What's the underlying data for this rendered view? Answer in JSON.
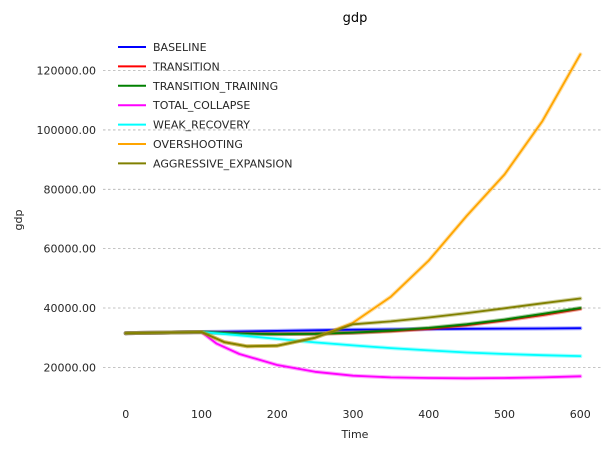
{
  "chart_data": {
    "type": "line",
    "title": "gdp",
    "xlabel": "Time",
    "ylabel": "gdp",
    "xlim": [
      -30,
      630
    ],
    "ylim": [
      9000,
      132000
    ],
    "xticks": [
      0,
      100,
      200,
      300,
      400,
      500,
      600
    ],
    "xtick_labels": [
      "0",
      "100",
      "200",
      "300",
      "400",
      "500",
      "600"
    ],
    "yticks": [
      20000,
      40000,
      60000,
      80000,
      100000,
      120000
    ],
    "ytick_labels": [
      "20000.00",
      "40000.00",
      "60000.00",
      "80000.00",
      "100000.00",
      "120000.00"
    ],
    "grid": "y-dashed",
    "legend": "top-left",
    "series": [
      {
        "name": "BASELINE",
        "color": "#0000ff",
        "x": [
          0,
          50,
          100,
          150,
          200,
          250,
          300,
          350,
          400,
          450,
          500,
          550,
          600
        ],
        "y": [
          31500,
          31700,
          31900,
          32100,
          32300,
          32500,
          32700,
          32800,
          32900,
          33000,
          33050,
          33100,
          33200
        ]
      },
      {
        "name": "TRANSITION",
        "color": "#ff0000",
        "x": [
          0,
          50,
          100,
          150,
          200,
          250,
          300,
          350,
          400,
          450,
          500,
          550,
          600
        ],
        "y": [
          31500,
          31700,
          31900,
          31400,
          31200,
          31300,
          31600,
          32200,
          33000,
          34200,
          35800,
          37600,
          39700
        ]
      },
      {
        "name": "TRANSITION_TRAINING",
        "color": "#008000",
        "x": [
          0,
          50,
          100,
          150,
          200,
          250,
          300,
          350,
          400,
          450,
          500,
          550,
          600
        ],
        "y": [
          31500,
          31700,
          31900,
          31400,
          31200,
          31300,
          31700,
          32400,
          33300,
          34500,
          36100,
          38000,
          40000
        ]
      },
      {
        "name": "TOTAL_COLLAPSE",
        "color": "#ff00ff",
        "x": [
          0,
          50,
          100,
          120,
          150,
          200,
          250,
          300,
          350,
          400,
          450,
          500,
          550,
          600
        ],
        "y": [
          31500,
          31700,
          31900,
          28000,
          24500,
          20800,
          18500,
          17200,
          16600,
          16400,
          16300,
          16400,
          16600,
          17000
        ]
      },
      {
        "name": "WEAK_RECOVERY",
        "color": "#00ffff",
        "x": [
          0,
          50,
          100,
          150,
          200,
          250,
          300,
          350,
          400,
          450,
          500,
          550,
          600
        ],
        "y": [
          31500,
          31700,
          31900,
          30800,
          29600,
          28400,
          27400,
          26500,
          25700,
          25000,
          24500,
          24100,
          23800
        ]
      },
      {
        "name": "OVERSHOOTING",
        "color": "#ffa500",
        "x": [
          0,
          50,
          100,
          130,
          160,
          200,
          250,
          300,
          350,
          400,
          450,
          500,
          550,
          600
        ],
        "y": [
          31500,
          31700,
          31900,
          28500,
          27100,
          27300,
          30000,
          35000,
          43800,
          56000,
          71000,
          85000,
          103000,
          125500
        ]
      },
      {
        "name": "AGGRESSIVE_EXPANSION",
        "color": "#808000",
        "x": [
          0,
          50,
          100,
          130,
          160,
          200,
          250,
          300,
          350,
          400,
          450,
          500,
          550,
          600
        ],
        "y": [
          31500,
          31700,
          31900,
          28500,
          27100,
          27300,
          30000,
          34500,
          35500,
          36800,
          38300,
          39900,
          41600,
          43200
        ]
      }
    ]
  }
}
